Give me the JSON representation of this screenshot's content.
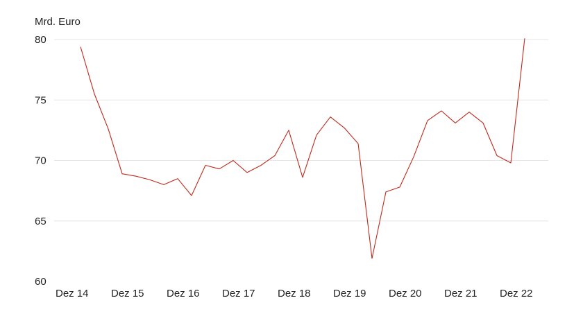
{
  "chart_data": {
    "type": "line",
    "unit_label": "Mrd. Euro",
    "ylim": [
      60,
      80
    ],
    "yticks": [
      60,
      65,
      70,
      75,
      80
    ],
    "grid": true,
    "x_tick_labels": [
      "Dez 14",
      "Dez 15",
      "Dez 16",
      "Dez 17",
      "Dez 18",
      "Dez 19",
      "Dez 20",
      "Dez 21",
      "Dez 22"
    ],
    "x": [
      "Dez 14",
      "Mär 15",
      "Jun 15",
      "Sep 15",
      "Dez 15",
      "Mär 16",
      "Jun 16",
      "Sep 16",
      "Dez 16",
      "Mär 17",
      "Jun 17",
      "Sep 17",
      "Dez 17",
      "Mär 18",
      "Jun 18",
      "Sep 18",
      "Dez 18",
      "Mär 19",
      "Jun 19",
      "Sep 19",
      "Dez 19",
      "Mär 20",
      "Jun 20",
      "Sep 20",
      "Dez 20",
      "Mär 21",
      "Jun 21",
      "Sep 21",
      "Dez 21",
      "Mär 22",
      "Jun 22",
      "Sep 22",
      "Dez 22"
    ],
    "series": [
      {
        "color": "#c0281b",
        "values": [
          79.4,
          75.5,
          72.6,
          68.9,
          68.7,
          68.4,
          68.0,
          68.5,
          67.1,
          69.6,
          69.3,
          70.0,
          69.0,
          69.6,
          70.4,
          72.5,
          68.6,
          72.1,
          73.6,
          72.7,
          71.4,
          61.9,
          67.4,
          67.8,
          70.3,
          73.3,
          74.1,
          73.1,
          74.0,
          73.1,
          70.4,
          69.8,
          80.1
        ]
      }
    ]
  }
}
